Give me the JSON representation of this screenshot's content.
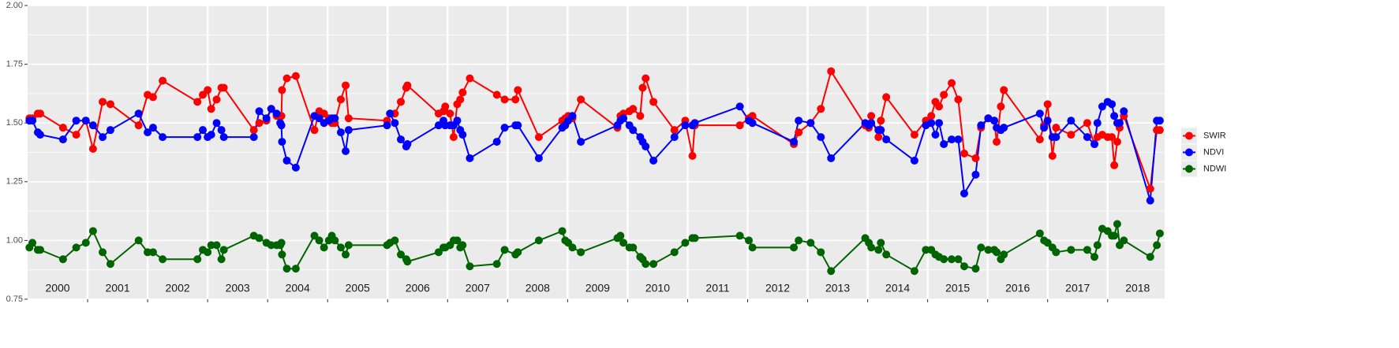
{
  "chart_data": {
    "type": "line",
    "x": [
      2000.03,
      2000.08,
      2000.17,
      2000.21,
      2000.59,
      2000.81,
      2000.97,
      2001.09,
      2001.25,
      2001.38,
      2001.85,
      2002.0,
      2002.09,
      2002.25,
      2002.83,
      2002.92,
      2003.0,
      2003.06,
      2003.15,
      2003.23,
      2003.27,
      2003.77,
      2003.86,
      2003.98,
      2004.06,
      2004.15,
      2004.21,
      2004.23,
      2004.24,
      2004.32,
      2004.47,
      2004.78,
      2004.86,
      2004.94,
      2005.02,
      2005.07,
      2005.12,
      2005.22,
      2005.3,
      2005.35,
      2005.99,
      2006.04,
      2006.12,
      2006.22,
      2006.31,
      2006.33,
      2006.85,
      2006.93,
      2006.96,
      2007.04,
      2007.1,
      2007.16,
      2007.21,
      2007.25,
      2007.37,
      2007.82,
      2007.95,
      2008.13,
      2008.17,
      2008.52,
      2008.91,
      2008.96,
      2009.01,
      2009.08,
      2009.22,
      2009.83,
      2009.88,
      2009.93,
      2010.03,
      2010.09,
      2010.21,
      2010.25,
      2010.3,
      2010.43,
      2010.78,
      2010.96,
      2011.08,
      2011.12,
      2011.87,
      2012.02,
      2012.08,
      2012.77,
      2012.85,
      2013.05,
      2013.22,
      2013.39,
      2013.96,
      2014.02,
      2014.06,
      2014.18,
      2014.22,
      2014.31,
      2014.78,
      2014.97,
      2015.06,
      2015.13,
      2015.19,
      2015.27,
      2015.4,
      2015.51,
      2015.61,
      2015.8,
      2015.89,
      2016.01,
      2016.11,
      2016.15,
      2016.22,
      2016.27,
      2016.87,
      2016.94,
      2017.0,
      2017.08,
      2017.14,
      2017.39,
      2017.66,
      2017.78,
      2017.83,
      2017.91,
      2018.0,
      2018.07,
      2018.11,
      2018.16,
      2018.2,
      2018.27,
      2018.71,
      2018.82,
      2018.87
    ],
    "series": [
      {
        "name": "SWIR",
        "color": "#ff0000",
        "values": [
          1.52,
          1.52,
          1.54,
          1.54,
          1.48,
          1.45,
          1.51,
          1.39,
          1.59,
          1.58,
          1.49,
          1.62,
          1.61,
          1.68,
          1.59,
          1.62,
          1.64,
          1.56,
          1.6,
          1.65,
          1.65,
          1.47,
          1.5,
          1.51,
          1.56,
          1.53,
          1.53,
          1.53,
          1.64,
          1.69,
          1.7,
          1.47,
          1.55,
          1.54,
          1.52,
          1.5,
          1.5,
          1.6,
          1.66,
          1.52,
          1.51,
          1.54,
          1.54,
          1.59,
          1.65,
          1.66,
          1.54,
          1.55,
          1.57,
          1.54,
          1.44,
          1.58,
          1.6,
          1.63,
          1.69,
          1.62,
          1.6,
          1.6,
          1.64,
          1.44,
          1.51,
          1.52,
          1.53,
          1.52,
          1.6,
          1.48,
          1.53,
          1.54,
          1.55,
          1.56,
          1.53,
          1.65,
          1.69,
          1.59,
          1.47,
          1.51,
          1.36,
          1.49,
          1.49,
          1.52,
          1.53,
          1.41,
          1.46,
          1.5,
          1.56,
          1.72,
          1.49,
          1.48,
          1.53,
          1.44,
          1.51,
          1.61,
          1.45,
          1.51,
          1.53,
          1.59,
          1.57,
          1.62,
          1.67,
          1.6,
          1.37,
          1.35,
          1.48,
          1.52,
          1.51,
          1.42,
          1.57,
          1.64,
          1.43,
          1.49,
          1.58,
          1.36,
          1.48,
          1.45,
          1.5,
          1.41,
          1.44,
          1.45,
          1.44,
          1.44,
          1.32,
          1.42,
          1.48,
          1.53,
          1.22,
          1.47,
          1.47
        ]
      },
      {
        "name": "NDVI",
        "color": "#0000ff",
        "values": [
          1.51,
          1.51,
          1.46,
          1.45,
          1.43,
          1.51,
          1.51,
          1.49,
          1.44,
          1.47,
          1.54,
          1.46,
          1.48,
          1.44,
          1.44,
          1.47,
          1.44,
          1.45,
          1.5,
          1.47,
          1.44,
          1.44,
          1.55,
          1.52,
          1.56,
          1.54,
          1.5,
          1.49,
          1.42,
          1.34,
          1.31,
          1.53,
          1.52,
          1.5,
          1.51,
          1.52,
          1.52,
          1.46,
          1.38,
          1.47,
          1.49,
          1.54,
          1.5,
          1.43,
          1.4,
          1.41,
          1.49,
          1.51,
          1.49,
          1.49,
          1.49,
          1.51,
          1.47,
          1.45,
          1.35,
          1.42,
          1.48,
          1.49,
          1.49,
          1.35,
          1.48,
          1.49,
          1.51,
          1.53,
          1.42,
          1.49,
          1.51,
          1.52,
          1.49,
          1.47,
          1.44,
          1.42,
          1.4,
          1.34,
          1.44,
          1.49,
          1.49,
          1.5,
          1.57,
          1.51,
          1.5,
          1.42,
          1.51,
          1.5,
          1.44,
          1.35,
          1.5,
          1.49,
          1.5,
          1.47,
          1.47,
          1.43,
          1.34,
          1.49,
          1.5,
          1.45,
          1.5,
          1.41,
          1.43,
          1.43,
          1.2,
          1.28,
          1.49,
          1.52,
          1.51,
          1.48,
          1.47,
          1.48,
          1.54,
          1.48,
          1.51,
          1.44,
          1.44,
          1.51,
          1.44,
          1.41,
          1.5,
          1.57,
          1.59,
          1.58,
          1.53,
          1.5,
          1.5,
          1.55,
          1.17,
          1.51,
          1.51
        ]
      },
      {
        "name": "NDWI",
        "color": "#006400",
        "values": [
          0.97,
          0.99,
          0.96,
          0.96,
          0.92,
          0.97,
          0.99,
          1.04,
          0.95,
          0.9,
          1.0,
          0.95,
          0.95,
          0.92,
          0.92,
          0.96,
          0.95,
          0.98,
          0.98,
          0.92,
          0.96,
          1.02,
          1.01,
          0.99,
          0.98,
          0.98,
          0.98,
          0.99,
          0.94,
          0.88,
          0.88,
          1.02,
          1.0,
          0.97,
          1.0,
          1.02,
          1.0,
          0.97,
          0.94,
          0.98,
          0.98,
          0.99,
          1.0,
          0.94,
          0.92,
          0.91,
          0.95,
          0.97,
          0.97,
          0.98,
          1.0,
          1.0,
          0.97,
          0.98,
          0.89,
          0.9,
          0.96,
          0.94,
          0.95,
          1.0,
          1.04,
          1.0,
          0.99,
          0.97,
          0.95,
          1.01,
          1.02,
          0.99,
          0.97,
          0.97,
          0.93,
          0.92,
          0.9,
          0.9,
          0.95,
          0.99,
          1.01,
          1.01,
          1.02,
          1.0,
          0.97,
          0.97,
          1.0,
          0.99,
          0.95,
          0.87,
          1.01,
          0.99,
          0.97,
          0.96,
          0.99,
          0.94,
          0.87,
          0.96,
          0.96,
          0.94,
          0.93,
          0.92,
          0.92,
          0.92,
          0.89,
          0.88,
          0.97,
          0.96,
          0.96,
          0.95,
          0.92,
          0.94,
          1.03,
          1.0,
          0.99,
          0.97,
          0.95,
          0.96,
          0.96,
          0.93,
          0.98,
          1.05,
          1.04,
          1.02,
          1.02,
          1.07,
          0.98,
          1.0,
          0.93,
          0.98,
          1.03
        ]
      }
    ],
    "xlim": [
      2000,
      2018.95
    ],
    "xticks": [
      {
        "value": 2000.5,
        "label": "2000"
      },
      {
        "value": 2001.5,
        "label": "2001"
      },
      {
        "value": 2002.5,
        "label": "2002"
      },
      {
        "value": 2003.5,
        "label": "2003"
      },
      {
        "value": 2004.5,
        "label": "2004"
      },
      {
        "value": 2005.5,
        "label": "2005"
      },
      {
        "value": 2006.5,
        "label": "2006"
      },
      {
        "value": 2007.5,
        "label": "2007"
      },
      {
        "value": 2008.5,
        "label": "2008"
      },
      {
        "value": 2009.5,
        "label": "2009"
      },
      {
        "value": 2010.5,
        "label": "2010"
      },
      {
        "value": 2011.5,
        "label": "2011"
      },
      {
        "value": 2012.5,
        "label": "2012"
      },
      {
        "value": 2013.5,
        "label": "2013"
      },
      {
        "value": 2014.5,
        "label": "2014"
      },
      {
        "value": 2015.5,
        "label": "2015"
      },
      {
        "value": 2016.5,
        "label": "2016"
      },
      {
        "value": 2017.5,
        "label": "2017"
      },
      {
        "value": 2018.5,
        "label": "2018"
      }
    ],
    "xgrid": [
      2001,
      2002,
      2003,
      2004,
      2005,
      2006,
      2007,
      2008,
      2009,
      2010,
      2011,
      2012,
      2013,
      2014,
      2015,
      2016,
      2017,
      2018
    ],
    "ylim": [
      0.75,
      2.0
    ],
    "yticks": [
      0.75,
      {
        "value": 1.0,
        "label": "1.00"
      },
      1.25,
      {
        "value": 1.5,
        "label": "1.50"
      },
      1.75,
      {
        "value": 2.0,
        "label": "2.00"
      }
    ],
    "grid": true,
    "legend": "right"
  }
}
